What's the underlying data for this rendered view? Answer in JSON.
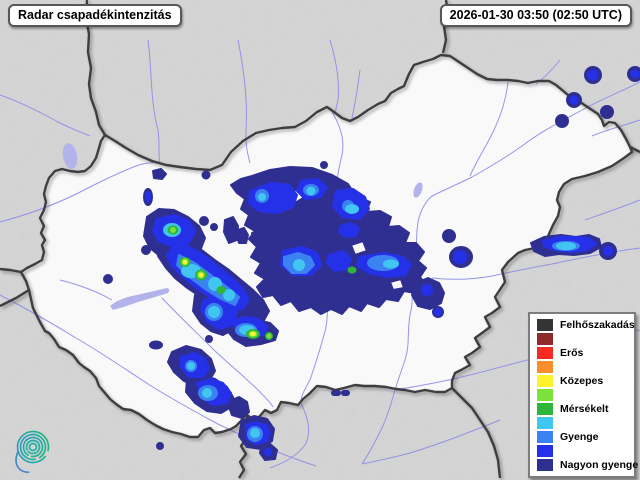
{
  "header": {
    "title": "Radar csapadékintenzitás",
    "timestamp": "2026-01-30 03:50 (02:50 UTC)"
  },
  "legend": {
    "items": [
      {
        "color": "#333333",
        "label": "Felhőszakadás"
      },
      {
        "color": "#8f2a2a",
        "label": ""
      },
      {
        "color": "#f92a21",
        "label": "Erős"
      },
      {
        "color": "#fb8e2b",
        "label": ""
      },
      {
        "color": "#fbf32e",
        "label": "Közepes"
      },
      {
        "color": "#7de13c",
        "label": ""
      },
      {
        "color": "#2eb53a",
        "label": "Mérsékelt"
      },
      {
        "color": "#41c6f2",
        "label": ""
      },
      {
        "color": "#3b82f2",
        "label": "Gyenge"
      },
      {
        "color": "#2531e8",
        "label": ""
      },
      {
        "color": "#2f2f92",
        "label": "Nagyon gyenge"
      }
    ]
  },
  "colors": {
    "palette": {
      "navy": "#2f2f92",
      "bblue": "#2531e8",
      "mblue": "#3b82f2",
      "cyan": "#41c6f2",
      "green": "#2eb53a",
      "lgreen": "#7de13c",
      "yellow": "#fbf32e",
      "river": "#8f8fe8",
      "lake": "#b3b3ec",
      "border": "#3e3e40",
      "outside": "#d5d5d5",
      "inside": "#ffffff",
      "logo_teal": "#25b391",
      "logo_blue": "#5579d2"
    }
  },
  "logo": {
    "name": "hungaromet-spiral-logo"
  }
}
